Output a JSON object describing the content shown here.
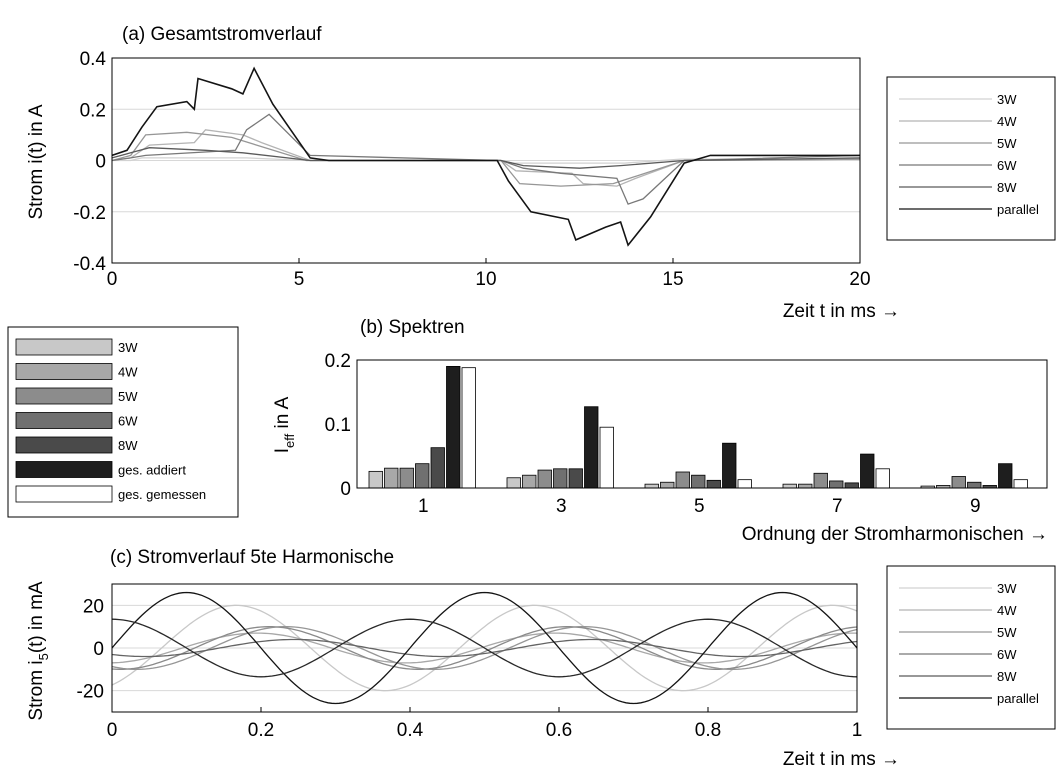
{
  "chart_data": [
    {
      "type": "line",
      "title": "(a) Gesamtstromverlauf",
      "xlabel": "Zeit t in ms →",
      "ylabel": "Strom i(t) in A",
      "xlim": [
        0,
        20
      ],
      "ylim": [
        -0.4,
        0.4
      ],
      "xticks": [
        "0",
        "5",
        "10",
        "15",
        "20"
      ],
      "yticks": [
        "0.4",
        "0.2",
        "0",
        "-0.2",
        "-0.4"
      ],
      "grid": "horizontal",
      "legend_position": "right",
      "series": [
        {
          "name": "3W",
          "color": "#d2d2d2",
          "x": [
            0,
            0.5,
            0.8,
            3.3,
            3.6,
            5.2,
            10.4,
            10.7,
            13.4,
            13.7,
            15.2,
            20
          ],
          "y": [
            0,
            0,
            0.01,
            0.01,
            0.01,
            0,
            0,
            -0.01,
            -0.01,
            -0.01,
            0.005,
            0.005
          ]
        },
        {
          "name": "4W",
          "color": "#b4b4b4",
          "x": [
            0,
            0.5,
            1,
            2.2,
            2.5,
            3.5,
            4,
            5.3,
            10.4,
            10.8,
            12.3,
            12.6,
            13.5,
            14,
            15.3,
            20
          ],
          "y": [
            0,
            0.01,
            0.06,
            0.07,
            0.12,
            0.1,
            0.07,
            0,
            0,
            -0.04,
            -0.05,
            -0.09,
            -0.1,
            -0.07,
            0,
            0.005
          ]
        },
        {
          "name": "5W",
          "color": "#969696",
          "x": [
            0,
            0.5,
            0.9,
            2,
            3.2,
            5.2,
            10.4,
            10.9,
            12,
            13.4,
            15.3,
            20
          ],
          "y": [
            0,
            0.02,
            0.1,
            0.11,
            0.09,
            0,
            0,
            -0.09,
            -0.1,
            -0.09,
            0,
            0.005
          ]
        },
        {
          "name": "6W",
          "color": "#787878",
          "x": [
            0,
            0.5,
            0.9,
            3.3,
            3.6,
            4.2,
            5.3,
            10.4,
            11,
            12,
            13.5,
            13.8,
            14.2,
            15.3,
            20
          ],
          "y": [
            0,
            0.01,
            0.02,
            0.04,
            0.12,
            0.18,
            0.02,
            0,
            -0.03,
            -0.05,
            -0.07,
            -0.17,
            -0.15,
            0,
            0.02
          ]
        },
        {
          "name": "8W",
          "color": "#5a5a5a",
          "x": [
            0,
            0.5,
            1,
            2.5,
            3.5,
            5.3,
            10.4,
            11,
            12.5,
            13.6,
            15.3,
            20
          ],
          "y": [
            0.01,
            0.03,
            0.05,
            0.04,
            0.03,
            0,
            0,
            -0.02,
            -0.03,
            -0.02,
            0,
            0.01
          ]
        },
        {
          "name": "parallel",
          "color": "#141414",
          "x": [
            0,
            0.4,
            0.8,
            1.2,
            2,
            2.2,
            2.3,
            3.2,
            3.5,
            3.8,
            4.3,
            5.3,
            5.8,
            10.3,
            10.6,
            11.2,
            12.2,
            12.4,
            13.2,
            13.6,
            13.8,
            14.4,
            15.3,
            16,
            20
          ],
          "y": [
            0.02,
            0.04,
            0.13,
            0.21,
            0.23,
            0.2,
            0.32,
            0.28,
            0.26,
            0.36,
            0.22,
            0.01,
            0,
            0,
            -0.08,
            -0.2,
            -0.23,
            -0.31,
            -0.26,
            -0.24,
            -0.33,
            -0.22,
            -0.01,
            0.02,
            0.02
          ]
        }
      ]
    },
    {
      "type": "bar",
      "title": "(b) Spektren",
      "xlabel": "Ordnung der Stromharmonischen →",
      "ylabel": "I_eff in A",
      "ylim": [
        0,
        0.2
      ],
      "yticks": [
        "0.2",
        "0.1",
        "0"
      ],
      "legend_position": "left",
      "categories": [
        "1",
        "3",
        "5",
        "7",
        "9"
      ],
      "series": [
        {
          "name": "3W",
          "color": "#c8c8c8",
          "values": [
            0.026,
            0.016,
            0.006,
            0.006,
            0.003
          ]
        },
        {
          "name": "4W",
          "color": "#a8a8a8",
          "values": [
            0.031,
            0.02,
            0.009,
            0.006,
            0.004
          ]
        },
        {
          "name": "5W",
          "color": "#8c8c8c",
          "values": [
            0.031,
            0.028,
            0.025,
            0.023,
            0.018
          ]
        },
        {
          "name": "6W",
          "color": "#707070",
          "values": [
            0.038,
            0.03,
            0.02,
            0.011,
            0.009
          ]
        },
        {
          "name": "8W",
          "color": "#4a4a4a",
          "values": [
            0.063,
            0.03,
            0.012,
            0.008,
            0.004
          ]
        },
        {
          "name": "ges. addiert",
          "color": "#1e1e1e",
          "values": [
            0.19,
            0.127,
            0.07,
            0.053,
            0.038
          ]
        },
        {
          "name": "ges. gemessen",
          "color": "#ffffff",
          "values": [
            0.188,
            0.095,
            0.013,
            0.03,
            0.013
          ]
        }
      ]
    },
    {
      "type": "line",
      "title": "(c) Stromverlauf 5te Harmonische",
      "xlabel": "Zeit t in ms →",
      "ylabel": "Strom i5(t) in mA",
      "xlim": [
        0,
        1
      ],
      "ylim": [
        -30,
        30
      ],
      "xticks": [
        "0",
        "0.2",
        "0.4",
        "0.6",
        "0.8",
        "1"
      ],
      "yticks": [
        "20",
        "0",
        "-20"
      ],
      "grid": "horizontal",
      "legend_position": "right",
      "series": [
        {
          "name": "3W",
          "color": "#c8c8c8",
          "amplitude": 20,
          "phase_deg": -60
        },
        {
          "name": "4W",
          "color": "#a8a8a8",
          "amplitude": 7,
          "phase_deg": -85
        },
        {
          "name": "5W",
          "color": "#969696",
          "amplitude": 10,
          "phase_deg": 240
        },
        {
          "name": "6W",
          "color": "#8a8a8a",
          "amplitude": 10,
          "phase_deg": 260
        },
        {
          "name": "8W",
          "color": "#646464",
          "amplitude": 4,
          "phase_deg": 230
        },
        {
          "name": "parallel",
          "color": "#141414",
          "amplitude": 26,
          "phase_deg": 0
        },
        {
          "name": "parallel",
          "color": "#282828",
          "amplitude": 13.5,
          "phase_deg": 90
        }
      ]
    }
  ],
  "legends": {
    "a": [
      "3W",
      "4W",
      "5W",
      "6W",
      "8W",
      "parallel"
    ],
    "b": [
      "3W",
      "4W",
      "5W",
      "6W",
      "8W",
      "ges. addiert",
      "ges. gemessen"
    ],
    "c": [
      "3W",
      "4W",
      "5W",
      "6W",
      "8W",
      "parallel"
    ]
  }
}
